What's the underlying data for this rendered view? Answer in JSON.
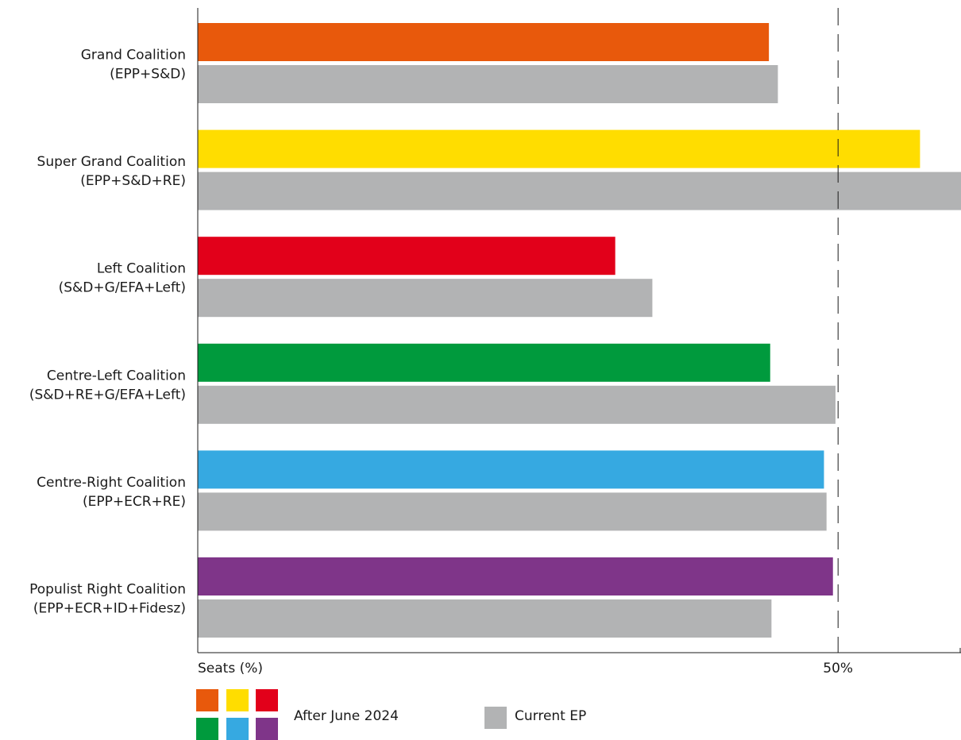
{
  "chart_data": {
    "type": "bar",
    "orientation": "horizontal",
    "categories": [
      [
        "Grand Coalition",
        "(EPP+S&D)"
      ],
      [
        "Super Grand Coalition",
        "(EPP+S&D+RE)"
      ],
      [
        "Left Coalition",
        "(S&D+G/EFA+Left)"
      ],
      [
        "Centre-Left Coalition",
        "(S&D+RE+G/EFA+Left)"
      ],
      [
        "Centre-Right Coalition",
        "(EPP+ECR+RE)"
      ],
      [
        "Populist Right Coalition",
        "(EPP+ECR+ID+Fidesz)"
      ]
    ],
    "series": [
      {
        "name": "After June 2024",
        "colors": [
          "#e8590c",
          "#ffdd00",
          "#e2001a",
          "#009a3d",
          "#36a9e1",
          "#7f3589"
        ],
        "values": [
          44.6,
          56.4,
          32.6,
          44.7,
          48.9,
          49.6
        ]
      },
      {
        "name": "Current EP",
        "colors": [
          "#b2b3b4",
          "#b2b3b4",
          "#b2b3b4",
          "#b2b3b4",
          "#b2b3b4",
          "#b2b3b4"
        ],
        "values": [
          45.3,
          59.6,
          35.5,
          49.8,
          49.1,
          44.8
        ]
      }
    ],
    "xlabel": "Seats (%)",
    "reference_line": {
      "value": 50,
      "label": "50%",
      "style": "dashed"
    },
    "xlim": [
      0,
      59.6
    ],
    "grid": false,
    "legend_position": "bottom-left"
  },
  "legend": {
    "after_label": "After June 2024",
    "current_label": "Current EP"
  }
}
